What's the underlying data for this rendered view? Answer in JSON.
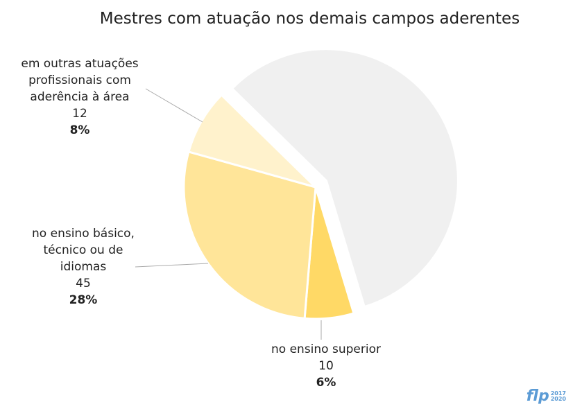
{
  "chart_data": {
    "type": "pie",
    "title": "Mestres com atuação nos demais campos aderentes",
    "categories": [
      null,
      "no ensino superior",
      "no ensino básico, técnico ou de idiomas",
      "em outras atuações profissionais com aderência à área"
    ],
    "values": [
      58,
      6,
      28,
      8
    ],
    "value_labels": [
      null,
      "6%",
      "28%",
      "8%"
    ],
    "counts": [
      null,
      10,
      45,
      12
    ],
    "colors": [
      "#f0f0f0",
      "#ffd966",
      "#ffe599",
      "#fff2cc"
    ]
  },
  "logo": {
    "text": "flp",
    "years": [
      "2017",
      "2020"
    ]
  }
}
